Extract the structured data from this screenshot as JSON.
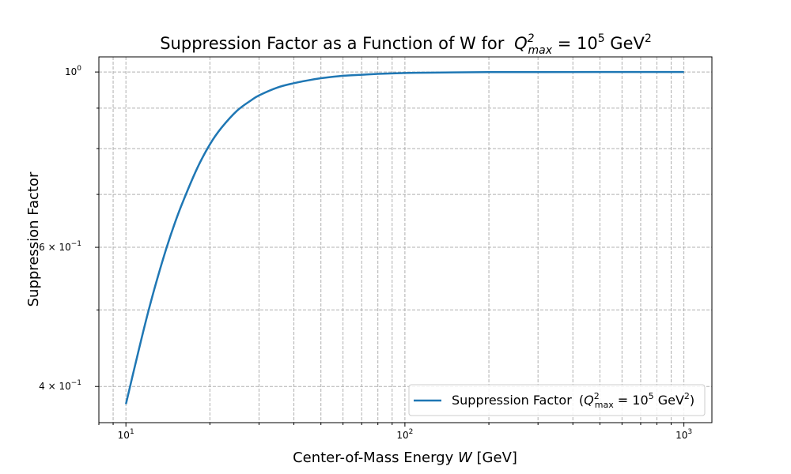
{
  "chart_data": {
    "type": "line",
    "title": "Suppression Factor as a Function of W for",
    "title_math": {
      "Q": "Q",
      "sup": "2",
      "sub": "max",
      "eq": " = 10",
      "eq_sup": "5",
      "unit": " GeV",
      "unit_sup": "2"
    },
    "xlabel": "Center-of-Mass Energy",
    "xlabel_var": "W",
    "xlabel_unit": "[GeV]",
    "ylabel": "Suppression Factor",
    "x_scale": "log",
    "y_scale": "log",
    "xlim": [
      8.0,
      1260
    ],
    "ylim": [
      0.36,
      1.045
    ],
    "x_ticks": [
      {
        "value": 10,
        "base": "10",
        "exp": "1"
      },
      {
        "value": 100,
        "base": "10",
        "exp": "2"
      },
      {
        "value": 1000,
        "base": "10",
        "exp": "3"
      }
    ],
    "y_ticks": [
      {
        "value": 1.0,
        "label": "10",
        "exp": "0"
      },
      {
        "value": 0.6,
        "label": "6 × 10",
        "exp": "−1"
      },
      {
        "value": 0.4,
        "label": "4 × 10",
        "exp": "−1"
      }
    ],
    "y_minor_ticks": [
      0.5,
      0.7,
      0.8,
      0.9
    ],
    "grid": true,
    "legend_position": "lower-right",
    "series": [
      {
        "name": "Suppression Factor",
        "legend_math": {
          "Q": "Q",
          "sup": "2",
          "sub": "max",
          "eq": " = 10",
          "eq_sup": "5",
          "unit": " GeV",
          "unit_sup": "2"
        },
        "color": "#1f77b4",
        "x": [
          10,
          11,
          12,
          13,
          14,
          15,
          16,
          18,
          20,
          22,
          25,
          28,
          30,
          35,
          40,
          45,
          50,
          60,
          70,
          80,
          100,
          120,
          150,
          200,
          300,
          500,
          1000
        ],
        "y": [
          0.38,
          0.438,
          0.496,
          0.55,
          0.6,
          0.645,
          0.685,
          0.755,
          0.81,
          0.85,
          0.893,
          0.92,
          0.934,
          0.956,
          0.968,
          0.976,
          0.982,
          0.989,
          0.992,
          0.9945,
          0.997,
          0.998,
          0.999,
          0.9995,
          0.9998,
          1.0,
          1.0
        ]
      }
    ]
  }
}
